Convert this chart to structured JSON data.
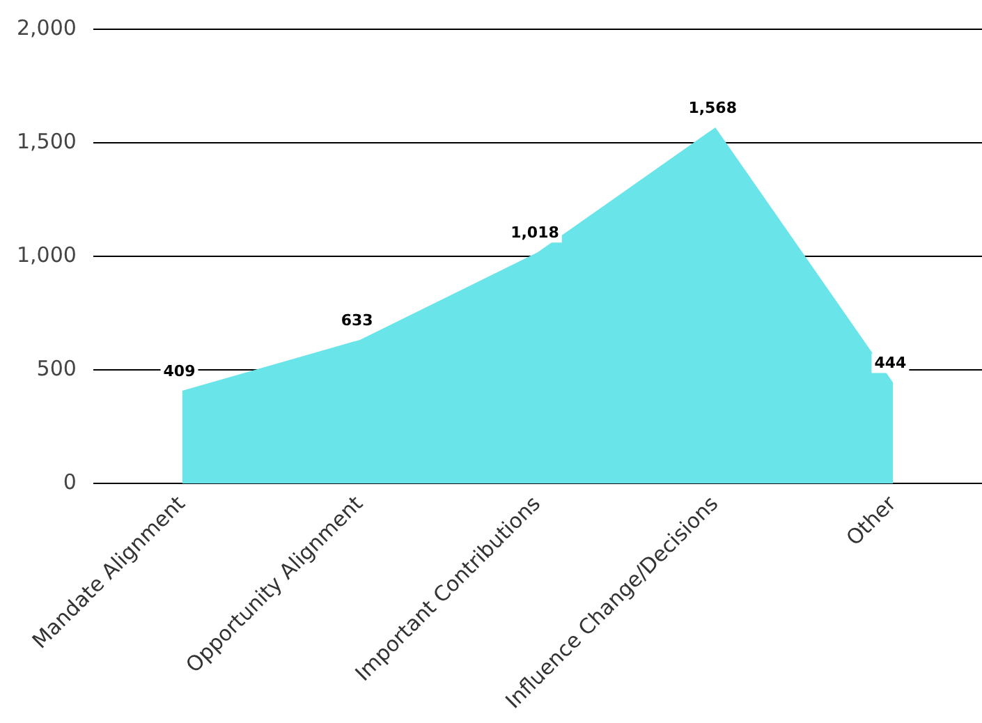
{
  "chart_data": {
    "type": "area",
    "categories": [
      "Mandate Alignment",
      "Opportunity Alignment",
      "Important Contributions",
      "Influence Change/Decisions",
      "Other"
    ],
    "values": [
      409,
      633,
      1018,
      1568,
      444
    ],
    "value_labels": [
      "409",
      "633",
      "1,018",
      "1,568",
      "444"
    ],
    "color": "#69e4e8",
    "ylim": [
      0,
      2000
    ],
    "yticks": [
      0,
      500,
      {
        "value": 1000,
        "label": "1,000"
      },
      {
        "value": 1500,
        "label": "1,500"
      },
      {
        "value": 2000,
        "label": "2,000"
      }
    ],
    "grid": "y",
    "legend": false
  }
}
